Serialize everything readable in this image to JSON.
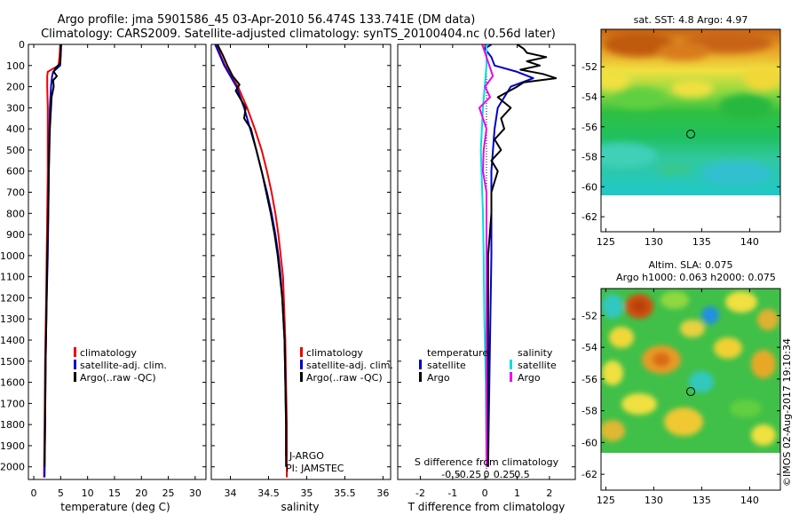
{
  "header": {
    "line1": "Argo profile: jma 5901586_45 03-Apr-2010 56.474S 133.741E (DM data)",
    "line2": "Climatology: CARS2009. Satellite-adjusted climatology: synTS_20100404.nc (0.56d later)"
  },
  "colors": {
    "climatology": "#ee0000",
    "satellite": "#0000cc",
    "argo": "#000000",
    "temp_diff_satellite": "#0000cc",
    "salinity_diff_satellite": "#00dddd",
    "salinity_diff_argo": "#ee00ee"
  },
  "depth_axis": {
    "ticks": [
      0,
      100,
      200,
      300,
      400,
      500,
      600,
      700,
      800,
      900,
      1000,
      1100,
      1200,
      1300,
      1400,
      1500,
      1600,
      1700,
      1800,
      1900,
      2000
    ]
  },
  "side_text": {
    "imos_stamp": "©IMOS 02-Aug-2017 19:10:34"
  },
  "chart_data": [
    {
      "type": "line",
      "xlabel": "temperature (deg C)",
      "xlim": [
        -1,
        32
      ],
      "ylim": [
        2060,
        0
      ],
      "xticks": [
        0,
        5,
        10,
        15,
        20,
        25,
        30
      ],
      "legend": [
        "climatology",
        "satellite-adj. clim.",
        "Argo(..raw -QC)"
      ],
      "series": [
        {
          "name": "climatology",
          "depth": [
            0,
            50,
            100,
            130,
            150,
            200,
            300,
            400,
            600,
            800,
            1000,
            1200,
            1500,
            1800,
            2050
          ],
          "values": [
            4.9,
            4.8,
            4.6,
            2.6,
            2.5,
            2.5,
            2.6,
            2.6,
            2.6,
            2.5,
            2.4,
            2.3,
            2.1,
            2.0,
            1.9
          ]
        },
        {
          "name": "satellite-adj. clim.",
          "depth": [
            0,
            50,
            100,
            130,
            150,
            200,
            300,
            400,
            600,
            800,
            1000,
            1200,
            1500,
            1800,
            2050
          ],
          "values": [
            5.1,
            5.0,
            4.9,
            3.6,
            3.4,
            3.2,
            3.0,
            2.9,
            2.8,
            2.7,
            2.6,
            2.4,
            2.2,
            2.1,
            2.0
          ]
        },
        {
          "name": "Argo(..raw -QC)",
          "depth": [
            0,
            40,
            90,
            110,
            130,
            150,
            170,
            200,
            250,
            300,
            400,
            500,
            600,
            800,
            1000,
            1200,
            1500,
            1800,
            2000
          ],
          "values": [
            5.0,
            5.0,
            4.9,
            4.1,
            3.7,
            4.3,
            3.6,
            3.7,
            3.3,
            3.2,
            3.0,
            2.9,
            2.8,
            2.7,
            2.5,
            2.4,
            2.2,
            2.1,
            2.0
          ]
        }
      ]
    },
    {
      "type": "line",
      "xlabel": "salinity",
      "xlim": [
        33.75,
        36.1
      ],
      "ylim": [
        2060,
        0
      ],
      "xticks": [
        34,
        34.5,
        35,
        35.5,
        36
      ],
      "xticklabels": [
        "34",
        "34.5",
        "35",
        "35.5",
        "36"
      ],
      "legend": [
        "climatology",
        "satellite-adj. clim.",
        "Argo(..raw -QC)"
      ],
      "annotations": [
        "J-ARGO",
        "PI: JAMSTEC"
      ],
      "series": [
        {
          "name": "climatology",
          "depth": [
            0,
            50,
            100,
            150,
            200,
            300,
            400,
            500,
            600,
            700,
            800,
            900,
            1000,
            1100,
            1200,
            1400,
            1600,
            1800,
            2050
          ],
          "values": [
            33.82,
            33.87,
            33.93,
            34.01,
            34.1,
            34.22,
            34.32,
            34.41,
            34.48,
            34.54,
            34.59,
            34.63,
            34.66,
            34.69,
            34.7,
            34.72,
            34.73,
            34.74,
            34.74
          ]
        },
        {
          "name": "satellite-adj. clim.",
          "depth": [
            0,
            50,
            100,
            150,
            200,
            300,
            400,
            500,
            600,
            700,
            800,
            900,
            1000,
            1100,
            1200,
            1400,
            1600,
            1800,
            1950
          ],
          "values": [
            33.8,
            33.86,
            33.92,
            34.0,
            34.08,
            34.18,
            34.26,
            34.34,
            34.41,
            34.48,
            34.54,
            34.59,
            34.63,
            34.66,
            34.68,
            34.71,
            34.72,
            34.73,
            34.73
          ]
        },
        {
          "name": "Argo(..raw -QC)",
          "depth": [
            0,
            50,
            100,
            150,
            190,
            220,
            300,
            350,
            400,
            500,
            600,
            700,
            800,
            900,
            1000,
            1100,
            1200,
            1400,
            1600,
            1800,
            2000
          ],
          "values": [
            33.83,
            33.9,
            33.96,
            34.03,
            34.12,
            34.07,
            34.2,
            34.18,
            34.27,
            34.34,
            34.41,
            34.47,
            34.53,
            34.58,
            34.62,
            34.65,
            34.68,
            34.71,
            34.72,
            34.73,
            34.73
          ]
        }
      ]
    },
    {
      "type": "line",
      "xlabel": "T difference from climatology",
      "xlabel_top": "S difference from climatology",
      "xlim": [
        -2.7,
        2.8
      ],
      "ylim": [
        2060,
        0
      ],
      "xticks": [
        -2,
        -1,
        0,
        1,
        2
      ],
      "xticklabels": [
        "-2",
        "-1",
        "0",
        "1",
        "2"
      ],
      "s_ticks": [
        "-0.5",
        "-0.25",
        "0",
        "0.25",
        "0.5"
      ],
      "legend_temperature_title": "temperature",
      "legend_salinity_title": "salinity",
      "legend_temperature": [
        "satellite",
        "Argo"
      ],
      "legend_salinity": [
        "satellite",
        "Argo"
      ],
      "series": [
        {
          "name": "temperature satellite",
          "depth": [
            0,
            20,
            60,
            100,
            130,
            160,
            200,
            300,
            400,
            600,
            800,
            1000,
            1500,
            2000
          ],
          "values": [
            0.2,
            0.0,
            0.2,
            0.3,
            1.0,
            1.5,
            0.8,
            0.4,
            0.3,
            0.2,
            0.2,
            0.2,
            0.15,
            0.1
          ]
        },
        {
          "name": "temperature Argo",
          "depth": [
            0,
            20,
            40,
            60,
            80,
            100,
            120,
            140,
            160,
            180,
            200,
            250,
            300,
            350,
            400,
            450,
            500,
            550,
            600,
            700,
            800,
            1000,
            1200,
            1500,
            2000
          ],
          "values": [
            1.0,
            1.2,
            1.3,
            1.9,
            1.3,
            1.7,
            1.1,
            1.8,
            2.2,
            1.2,
            1.0,
            0.4,
            0.8,
            0.5,
            0.6,
            0.3,
            0.5,
            0.2,
            0.4,
            0.2,
            0.2,
            0.1,
            0.1,
            0.1,
            0.1
          ]
        },
        {
          "name": "salinity satellite",
          "depth": [
            0,
            100,
            300,
            500,
            800,
            1000,
            1300,
            1600,
            2000
          ],
          "values": [
            0.0,
            0.0,
            -0.05,
            -0.08,
            -0.05,
            -0.04,
            -0.03,
            -0.01,
            0.0
          ]
        },
        {
          "name": "salinity Argo",
          "depth": [
            0,
            50,
            100,
            150,
            200,
            250,
            300,
            400,
            500,
            600,
            700,
            800,
            1000,
            1200,
            1500,
            2000
          ],
          "values": [
            -0.06,
            -0.01,
            0.04,
            0.09,
            -0.02,
            0.05,
            -0.1,
            0.0,
            -0.04,
            -0.05,
            0.0,
            0.0,
            0.0,
            0.0,
            0.0,
            0.0
          ]
        }
      ]
    },
    {
      "type": "heatmap",
      "title": "sat. SST: 4.8 Argo: 4.97",
      "xlim": [
        124.5,
        143.2
      ],
      "ylim": [
        -63,
        -49.5
      ],
      "xticks": [
        125,
        130,
        135,
        140
      ],
      "yticks": [
        -52,
        -54,
        -56,
        -58,
        -60,
        -62
      ],
      "data_extent_lat": [
        -60,
        -49.5
      ],
      "marker": {
        "lon": 133.741,
        "lat": -56.474
      }
    },
    {
      "type": "heatmap",
      "title_line1": "Altim. SLA: 0.075",
      "title_line2": "Argo h1000: 0.063 h2000: 0.075",
      "xlim": [
        124.5,
        143.2
      ],
      "ylim": [
        -63,
        -50.3
      ],
      "xticks": [
        125,
        130,
        135,
        140
      ],
      "yticks": [
        -52,
        -54,
        -56,
        -58,
        -60,
        -62
      ],
      "data_extent_lat": [
        -60,
        -50.3
      ],
      "marker": {
        "lon": 133.741,
        "lat": -56.474
      }
    }
  ]
}
